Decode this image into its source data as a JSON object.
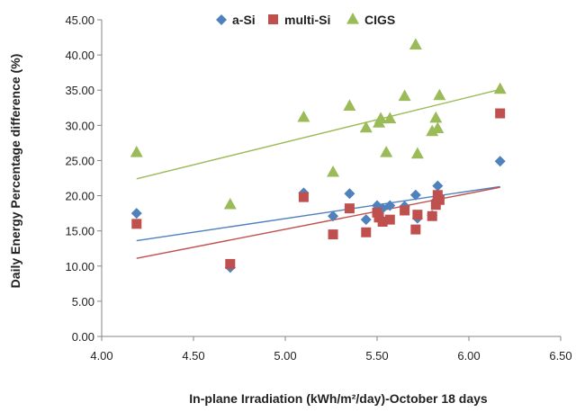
{
  "chart_data": {
    "type": "scatter",
    "xlabel": "In-plane Irradiation (kWh/m²/day)-October 18 days",
    "ylabel": "Daily Energy Percentage difference (%)",
    "xlim": [
      4.0,
      6.5
    ],
    "ylim": [
      0.0,
      45.0
    ],
    "x_ticks": [
      "4.00",
      "4.50",
      "5.00",
      "5.50",
      "6.00",
      "6.50"
    ],
    "y_ticks": [
      "0.00",
      "5.00",
      "10.00",
      "15.00",
      "20.00",
      "25.00",
      "30.00",
      "35.00",
      "40.00",
      "45.00"
    ],
    "grid": false,
    "legend_position": "top",
    "series": [
      {
        "name": "a-Si",
        "marker": "diamond",
        "color": "#4F81BD",
        "points": [
          [
            4.19,
            17.5
          ],
          [
            4.7,
            9.8
          ],
          [
            5.1,
            20.4
          ],
          [
            5.26,
            17.1
          ],
          [
            5.35,
            20.3
          ],
          [
            5.44,
            16.6
          ],
          [
            5.5,
            18.6
          ],
          [
            5.51,
            17.0
          ],
          [
            5.53,
            18.2
          ],
          [
            5.57,
            18.6
          ],
          [
            5.65,
            18.5
          ],
          [
            5.71,
            20.1
          ],
          [
            5.72,
            16.8
          ],
          [
            5.8,
            17.2
          ],
          [
            5.82,
            19.3
          ],
          [
            5.83,
            21.4
          ],
          [
            6.17,
            24.9
          ]
        ],
        "trend": [
          [
            4.19,
            13.6
          ],
          [
            6.17,
            21.3
          ]
        ]
      },
      {
        "name": "multi-Si",
        "marker": "square",
        "color": "#C0504D",
        "points": [
          [
            4.19,
            16.0
          ],
          [
            4.7,
            10.3
          ],
          [
            5.1,
            19.8
          ],
          [
            5.26,
            14.5
          ],
          [
            5.35,
            18.2
          ],
          [
            5.44,
            14.8
          ],
          [
            5.5,
            17.6
          ],
          [
            5.51,
            16.9
          ],
          [
            5.53,
            16.3
          ],
          [
            5.57,
            16.6
          ],
          [
            5.65,
            17.9
          ],
          [
            5.71,
            15.2
          ],
          [
            5.72,
            17.3
          ],
          [
            5.8,
            17.1
          ],
          [
            5.82,
            18.7
          ],
          [
            5.83,
            20.1
          ],
          [
            5.84,
            19.4
          ],
          [
            6.17,
            31.7
          ]
        ],
        "trend": [
          [
            4.19,
            11.1
          ],
          [
            6.17,
            21.2
          ]
        ]
      },
      {
        "name": "CIGS",
        "marker": "triangle",
        "color": "#9BBB59",
        "points": [
          [
            4.19,
            26.2
          ],
          [
            4.7,
            18.8
          ],
          [
            5.1,
            31.2
          ],
          [
            5.26,
            23.4
          ],
          [
            5.35,
            32.8
          ],
          [
            5.44,
            29.7
          ],
          [
            5.51,
            30.4
          ],
          [
            5.52,
            31.0
          ],
          [
            5.55,
            26.2
          ],
          [
            5.57,
            31.0
          ],
          [
            5.65,
            34.2
          ],
          [
            5.71,
            41.5
          ],
          [
            5.72,
            26.0
          ],
          [
            5.8,
            29.2
          ],
          [
            5.82,
            31.1
          ],
          [
            5.83,
            29.6
          ],
          [
            5.84,
            34.3
          ],
          [
            6.17,
            35.2
          ]
        ],
        "trend": [
          [
            4.19,
            22.4
          ],
          [
            6.17,
            35.1
          ]
        ]
      }
    ]
  }
}
